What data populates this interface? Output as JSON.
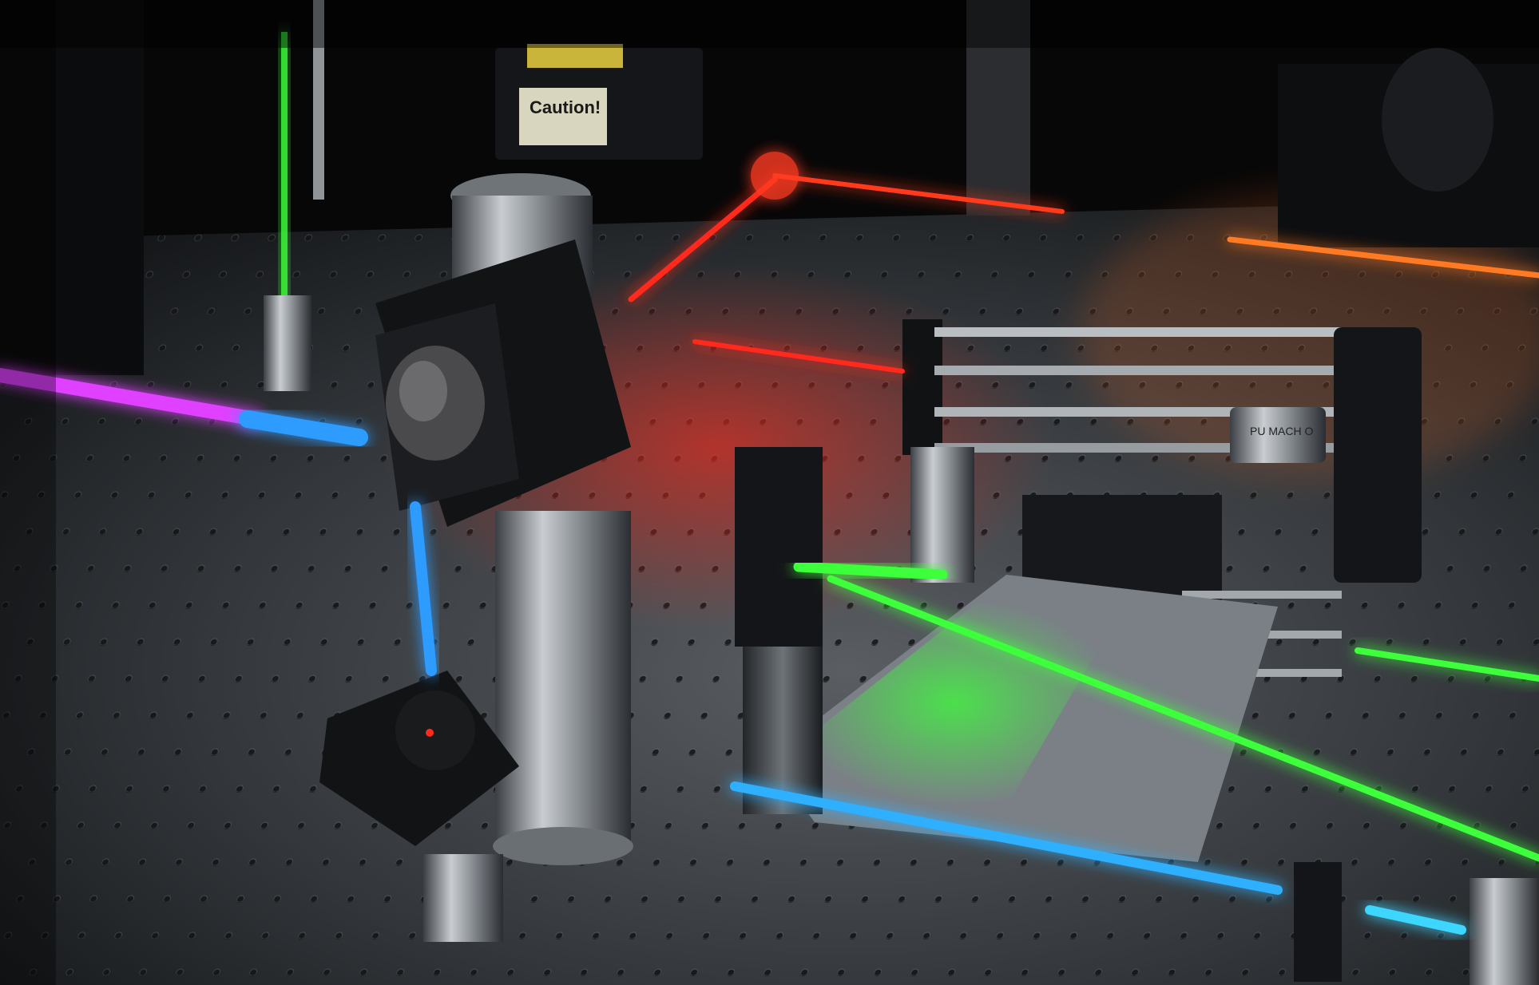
{
  "photo": {
    "caution_label": "Caution!",
    "lens_label": "PU\nMACH\nO",
    "colors": {
      "red_beam": "#ff2a1a",
      "orange_beam": "#ff6a1a",
      "green_beam": "#3dff3a",
      "blue_beam": "#2f9bff",
      "violet_beam": "#e040ff",
      "table": "#3a3f44",
      "hole": "#141619",
      "mount_black": "#101113",
      "steel": "#9da3a8"
    }
  }
}
